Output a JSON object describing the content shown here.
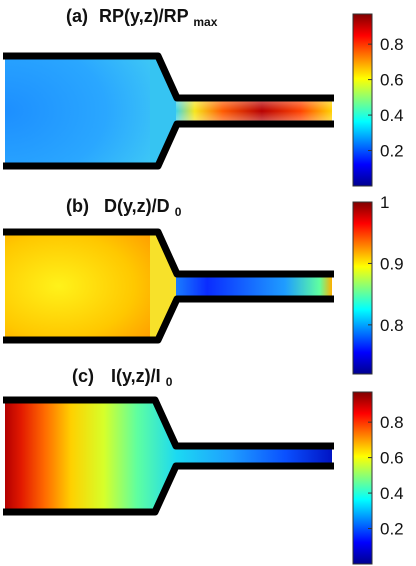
{
  "panels": [
    {
      "label": "(a)",
      "title_main": "RP(y,z)/RP",
      "title_sub": "max",
      "colormap": "jet",
      "colorbar_range": [
        0.0,
        0.97
      ],
      "colorbar_ticks": [
        "0.2",
        "0.4",
        "0.6",
        "0.8"
      ],
      "colorbar_tick_values": [
        0.2,
        0.4,
        0.6,
        0.8
      ]
    },
    {
      "label": "(b)",
      "title_main": "D(y,z)/D",
      "title_sub": "0",
      "colormap": "jet",
      "colorbar_range": [
        0.72,
        1.0
      ],
      "colorbar_ticks": [
        "0.8",
        "0.9",
        "1"
      ],
      "colorbar_tick_values": [
        0.8,
        0.9,
        1.0
      ]
    },
    {
      "label": "(c)",
      "title_main": "I(y,z)/I",
      "title_sub": "0",
      "colormap": "jet",
      "colorbar_range": [
        0.0,
        0.97
      ],
      "colorbar_ticks": [
        "0.2",
        "0.4",
        "0.6",
        "0.8"
      ],
      "colorbar_tick_values": [
        0.2,
        0.4,
        0.6,
        0.8
      ]
    }
  ],
  "chart_data": [
    {
      "type": "heatmap",
      "title": "(a) RP(y,z)/RPmax",
      "geometry": "wide channel contracting into narrow channel",
      "field_description_values": {
        "wide_channel": [
          0.25,
          0.35
        ],
        "contraction": [
          0.35,
          0.5
        ],
        "narrow_channel_peak": 0.95
      },
      "colorbar": {
        "min": 0.0,
        "max": 0.97,
        "ticks": [
          0.2,
          0.4,
          0.6,
          0.8
        ]
      }
    },
    {
      "type": "heatmap",
      "title": "(b) D(y,z)/D0",
      "geometry": "wide channel contracting into narrow channel",
      "field_description_values": {
        "wide_channel_walls": 0.97,
        "wide_channel_center": 0.9,
        "narrow_channel": [
          0.75,
          0.8
        ]
      },
      "colorbar": {
        "min": 0.72,
        "max": 1.0,
        "ticks": [
          0.8,
          0.9,
          1.0
        ]
      }
    },
    {
      "type": "heatmap",
      "title": "(c) I(y,z)/I0",
      "geometry": "wide channel contracting into narrow channel",
      "field_description_values": {
        "inlet": 0.95,
        "middle": 0.5,
        "outlet": 0.05
      },
      "colorbar": {
        "min": 0.0,
        "max": 0.97,
        "ticks": [
          0.2,
          0.4,
          0.6,
          0.8
        ]
      }
    }
  ]
}
